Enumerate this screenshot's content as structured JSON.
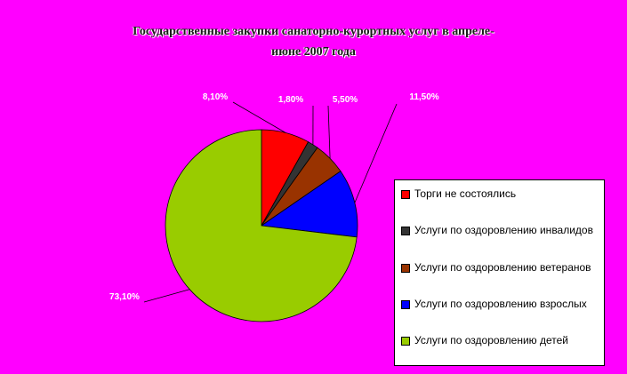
{
  "chart_data": {
    "type": "pie",
    "title": "Государственные закупки санаторно-курортных услуг в апреле-июне 2007 года",
    "title_lines": [
      "Государственные закупки санаторно-курортных услуг в апреле-",
      "июне 2007 года"
    ],
    "slices": [
      {
        "name": "Торги не состоялись",
        "value": 8.1,
        "label": "8,10%",
        "color": "#ff0000"
      },
      {
        "name": "Услуги по оздоровлению инвалидов",
        "value": 1.8,
        "label": "1,80%",
        "color": "#333333"
      },
      {
        "name": "Услуги по оздоровлению ветеранов",
        "value": 5.5,
        "label": "5,50%",
        "color": "#993300"
      },
      {
        "name": "Услуги по оздоровлению взрослых",
        "value": 11.5,
        "label": "11,50%",
        "color": "#0000ff"
      },
      {
        "name": "Услуги по оздоровлению детей",
        "value": 73.1,
        "label": "73,10%",
        "color": "#99cc00"
      }
    ],
    "legend_position": "right"
  },
  "legend": {
    "items": [
      {
        "label": "Торги не состоялись",
        "color": "#ff0000"
      },
      {
        "label": "Услуги по оздоровлению инвалидов",
        "color": "#333333"
      },
      {
        "label": "Услуги по оздоровлению ветеранов",
        "color": "#993300"
      },
      {
        "label": "Услуги по оздоровлению взрослых",
        "color": "#0000ff"
      },
      {
        "label": "Услуги по оздоровлению детей",
        "color": "#99cc00"
      }
    ]
  },
  "colors": {
    "background": "#ff00ff",
    "legend_bg": "#ffffff"
  }
}
